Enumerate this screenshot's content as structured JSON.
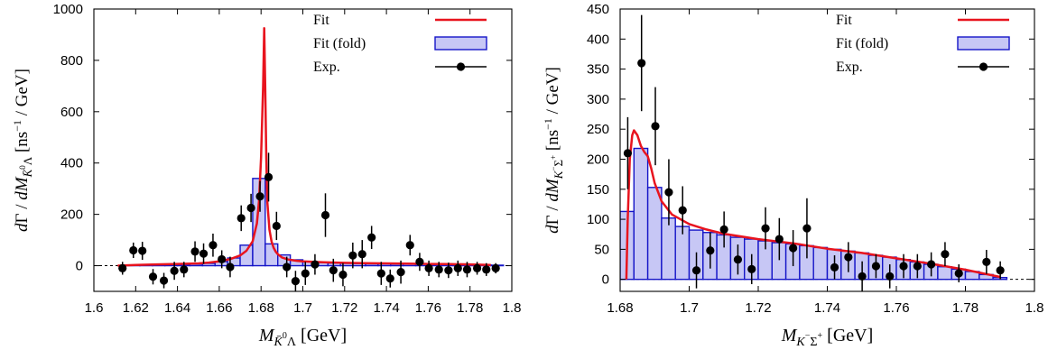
{
  "chart_data": [
    {
      "type": "line",
      "xlabel": "M K̄⁰Λ [GeV]",
      "ylabel": "dΓ / dM K̄⁰Λ [ns⁻¹ / GeV]",
      "xlim": [
        1.6,
        1.8
      ],
      "ylim": [
        -100,
        1000
      ],
      "xticks": [
        "1.6",
        "1.62",
        "1.64",
        "1.66",
        "1.68",
        "1.7",
        "1.72",
        "1.74",
        "1.76",
        "1.78",
        "1.8"
      ],
      "yticks": [
        "0",
        "200",
        "400",
        "600",
        "800",
        "1000"
      ],
      "legend": [
        "Fit",
        "Fit (fold)",
        "Exp."
      ],
      "legend_position": "top-right",
      "colors": {
        "fit": "#e8141e",
        "hist_fill": "#c7c7f5",
        "hist_edge": "#1515c8",
        "exp": "#000000"
      },
      "series": [
        {
          "name": "Fit",
          "style": "line",
          "x": [
            1.6114,
            1.62,
            1.63,
            1.64,
            1.65,
            1.655,
            1.66,
            1.665,
            1.67,
            1.673,
            1.676,
            1.678,
            1.679,
            1.68,
            1.681,
            1.6815,
            1.682,
            1.6825,
            1.683,
            1.684,
            1.685,
            1.686,
            1.687,
            1.688,
            1.69,
            1.693,
            1.697,
            1.7,
            1.71,
            1.72,
            1.73,
            1.74,
            1.75,
            1.76,
            1.77,
            1.78,
            1.79
          ],
          "y": [
            0,
            3,
            5,
            7,
            9,
            12,
            17,
            25,
            40,
            58,
            95,
            165,
            250,
            420,
            700,
            925,
            700,
            420,
            250,
            140,
            95,
            70,
            55,
            45,
            32,
            24,
            19,
            17,
            13,
            11,
            10,
            9,
            8,
            7,
            6,
            5,
            3
          ]
        },
        {
          "name": "Fit (fold)",
          "style": "histogram",
          "bin_width": 0.006,
          "x": [
            1.613,
            1.619,
            1.625,
            1.631,
            1.637,
            1.643,
            1.649,
            1.655,
            1.661,
            1.667,
            1.673,
            1.679,
            1.685,
            1.691,
            1.697,
            1.703,
            1.709,
            1.715,
            1.721,
            1.727,
            1.733,
            1.739,
            1.745,
            1.751,
            1.757,
            1.763,
            1.769,
            1.775,
            1.781,
            1.787,
            1.793
          ],
          "y": [
            0,
            1,
            1,
            2,
            3,
            4,
            6,
            9,
            16,
            30,
            80,
            340,
            85,
            42,
            23,
            15,
            12,
            10,
            9,
            8,
            7,
            7,
            6,
            6,
            6,
            5,
            5,
            5,
            4,
            3,
            2
          ]
        },
        {
          "name": "Exp.",
          "style": "points",
          "x": [
            1.6137,
            1.6189,
            1.6232,
            1.6283,
            1.6335,
            1.6385,
            1.6431,
            1.6484,
            1.6525,
            1.657,
            1.6612,
            1.6652,
            1.6705,
            1.6752,
            1.6795,
            1.6836,
            1.6874,
            1.6923,
            1.6965,
            1.7012,
            1.7058,
            1.7108,
            1.7146,
            1.7192,
            1.7239,
            1.7284,
            1.7329,
            1.7375,
            1.7418,
            1.7469,
            1.7513,
            1.7559,
            1.7603,
            1.7651,
            1.7697,
            1.7742,
            1.7786,
            1.7834,
            1.7878,
            1.7923
          ],
          "y": [
            -10,
            60,
            58,
            -43,
            -58,
            -20,
            -15,
            55,
            47,
            80,
            25,
            -5,
            185,
            225,
            270,
            345,
            155,
            -5,
            -60,
            -30,
            5,
            197,
            -18,
            -35,
            40,
            45,
            110,
            -30,
            -50,
            -25,
            80,
            15,
            -10,
            -15,
            -18,
            -10,
            -15,
            -10,
            -15,
            -10
          ],
          "err": [
            25,
            30,
            35,
            30,
            30,
            35,
            30,
            40,
            40,
            45,
            35,
            40,
            50,
            55,
            60,
            95,
            55,
            40,
            40,
            45,
            40,
            85,
            45,
            45,
            50,
            55,
            45,
            45,
            35,
            45,
            40,
            35,
            30,
            30,
            30,
            30,
            30,
            25,
            25,
            20
          ]
        }
      ]
    },
    {
      "type": "line",
      "xlabel": "M K⁻Σ⁺ [GeV]",
      "ylabel": "dΓ / dM K⁻Σ⁺ [ns⁻¹ / GeV]",
      "xlim": [
        1.68,
        1.8
      ],
      "ylim": [
        -20,
        450
      ],
      "xticks": [
        "1.68",
        "1.7",
        "1.72",
        "1.74",
        "1.76",
        "1.78",
        "1.8"
      ],
      "yticks": [
        "0",
        "50",
        "100",
        "150",
        "200",
        "250",
        "300",
        "350",
        "400",
        "450"
      ],
      "legend": [
        "Fit",
        "Fit (fold)",
        "Exp."
      ],
      "legend_position": "top-right",
      "colors": {
        "fit": "#e8141e",
        "hist_fill": "#c7c7f5",
        "hist_edge": "#1515c8",
        "exp": "#000000"
      },
      "series": [
        {
          "name": "Fit",
          "style": "line",
          "x": [
            1.6818,
            1.6822,
            1.6828,
            1.6835,
            1.684,
            1.685,
            1.686,
            1.687,
            1.688,
            1.689,
            1.69,
            1.692,
            1.695,
            1.7,
            1.705,
            1.71,
            1.72,
            1.73,
            1.74,
            1.75,
            1.76,
            1.77,
            1.78,
            1.79
          ],
          "y": [
            0,
            100,
            200,
            240,
            248,
            240,
            222,
            212,
            205,
            185,
            160,
            130,
            108,
            92,
            83,
            76,
            67,
            60,
            51,
            44,
            35,
            26,
            16,
            4
          ]
        },
        {
          "name": "Fit (fold)",
          "style": "histogram",
          "bin_width": 0.004,
          "x": [
            1.682,
            1.686,
            1.69,
            1.694,
            1.698,
            1.702,
            1.706,
            1.71,
            1.714,
            1.718,
            1.722,
            1.726,
            1.73,
            1.734,
            1.738,
            1.742,
            1.746,
            1.75,
            1.754,
            1.758,
            1.762,
            1.766,
            1.77,
            1.774,
            1.778,
            1.782,
            1.786,
            1.79
          ],
          "y": [
            113,
            218,
            153,
            102,
            88,
            82,
            78,
            74,
            70,
            67,
            64,
            61,
            59,
            56,
            53,
            50,
            47,
            44,
            40,
            37,
            33,
            29,
            25,
            21,
            17,
            13,
            8,
            3
          ]
        },
        {
          "name": "Exp.",
          "style": "points",
          "x": [
            1.6822,
            1.6862,
            1.6902,
            1.6941,
            1.6981,
            1.7021,
            1.7061,
            1.7101,
            1.7141,
            1.7181,
            1.7221,
            1.7261,
            1.7301,
            1.7341,
            1.7421,
            1.7461,
            1.7501,
            1.7541,
            1.7581,
            1.7621,
            1.7661,
            1.7701,
            1.7741,
            1.7781,
            1.7861,
            1.7901
          ],
          "y": [
            210,
            360,
            255,
            145,
            115,
            15,
            48,
            83,
            33,
            17,
            85,
            67,
            52,
            85,
            20,
            37,
            5,
            22,
            5,
            22,
            22,
            25,
            42,
            10,
            29,
            15
          ],
          "err": [
            60,
            80,
            65,
            55,
            40,
            30,
            30,
            30,
            25,
            25,
            35,
            35,
            30,
            50,
            20,
            25,
            25,
            20,
            20,
            20,
            20,
            20,
            20,
            15,
            20,
            15
          ]
        }
      ]
    }
  ]
}
